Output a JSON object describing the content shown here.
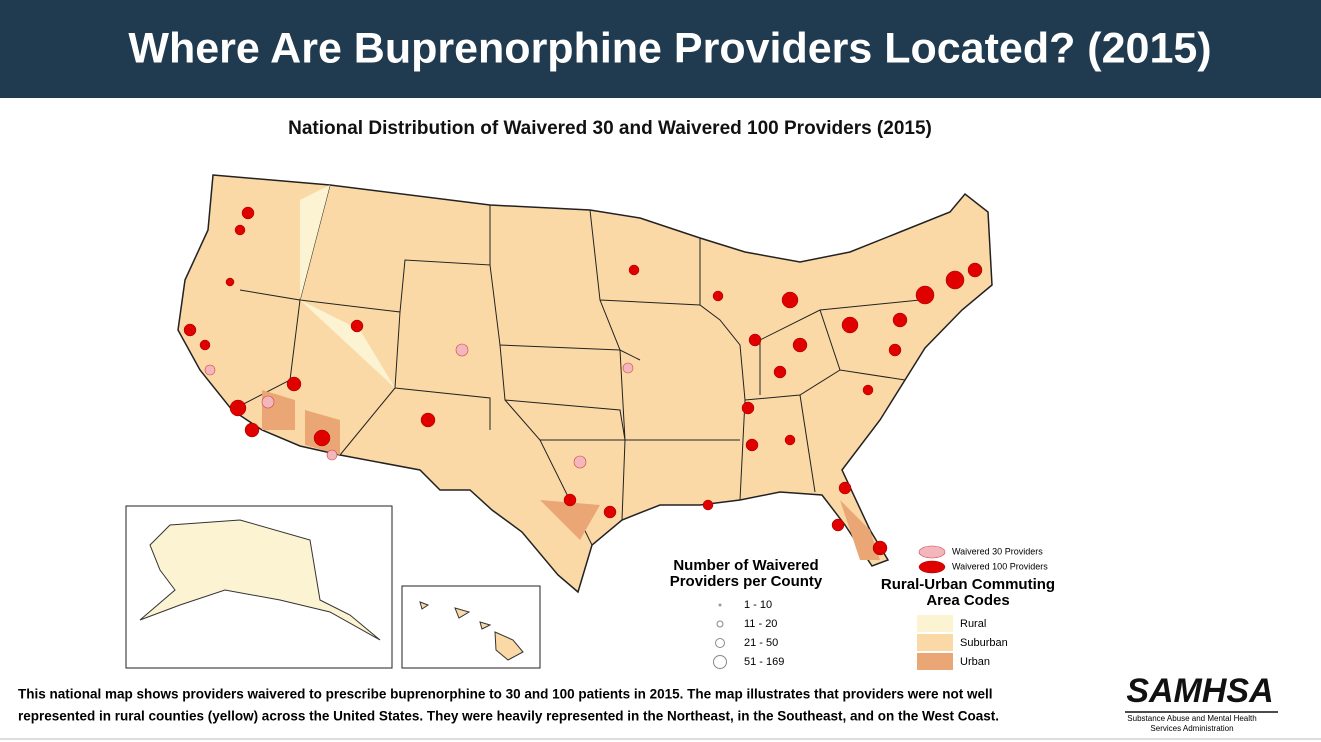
{
  "header": {
    "title": "Where Are Buprenorphine Providers Located? (2015)"
  },
  "map": {
    "title": "National Distribution of Waivered 30 and Waivered 100 Providers (2015)",
    "provider_legend": [
      "Waivered 30 Providers",
      "Waivered 100 Providers"
    ],
    "size_legend": {
      "title": [
        "Number of Waivered",
        "Providers per County"
      ],
      "entries": [
        "1 - 10",
        "11 - 20",
        "21 - 50",
        "51 - 169"
      ]
    },
    "ruca_legend": {
      "title": [
        "Rural-Urban Commuting",
        "Area Codes"
      ],
      "entries": [
        "Rural",
        "Suburban",
        "Urban"
      ]
    }
  },
  "caption": [
    "This national map shows providers waivered to prescribe buprenorphine to 30 and 100 patients in 2015. The map illustrates that providers were not well",
    "represented in rural counties (yellow) across the United States. They were heavily represented in the Northeast, in the Southeast, and on the West Coast."
  ],
  "logo": {
    "name": "SAMHSA",
    "subtitle": [
      "Substance Abuse and Mental Health",
      "Services Administration"
    ]
  }
}
